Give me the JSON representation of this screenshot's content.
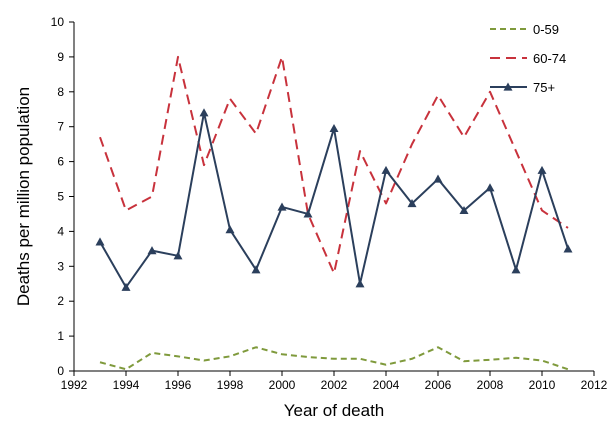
{
  "chart_data": {
    "type": "line",
    "xlabel": "Year of death",
    "ylabel": "Deaths per million population",
    "xlim": [
      1992,
      2012
    ],
    "ylim": [
      0,
      10
    ],
    "xticks": [
      "1992",
      "1994",
      "1996",
      "1998",
      "2000",
      "2002",
      "2004",
      "2006",
      "2008",
      "2010",
      "2012"
    ],
    "yticks": [
      "0",
      "1",
      "2",
      "3",
      "4",
      "5",
      "6",
      "7",
      "8",
      "9",
      "10"
    ],
    "grid": false,
    "legend_position": "top-right",
    "x": [
      1993,
      1994,
      1995,
      1996,
      1997,
      1998,
      1999,
      2000,
      2001,
      2002,
      2003,
      2004,
      2005,
      2006,
      2007,
      2008,
      2009,
      2010,
      2011
    ],
    "series": [
      {
        "name": "0-59",
        "color": "#7f9a3c",
        "style": "dashed",
        "marker": "none",
        "values": [
          0.25,
          0.05,
          0.52,
          0.42,
          0.3,
          0.42,
          0.68,
          0.48,
          0.4,
          0.35,
          0.35,
          0.18,
          0.35,
          0.68,
          0.28,
          0.32,
          0.38,
          0.3,
          0.05
        ]
      },
      {
        "name": "60-74",
        "color": "#c8323c",
        "style": "dashed",
        "marker": "none",
        "values": [
          6.7,
          4.6,
          5.0,
          9.0,
          5.9,
          7.8,
          6.8,
          9.0,
          4.5,
          2.8,
          6.3,
          4.8,
          6.5,
          7.9,
          6.7,
          8.0,
          6.3,
          4.6,
          4.1
        ]
      },
      {
        "name": "75+",
        "color": "#2b3f5c",
        "style": "solid",
        "marker": "triangle",
        "values": [
          3.7,
          2.4,
          3.45,
          3.3,
          7.4,
          4.05,
          2.9,
          4.7,
          4.5,
          6.95,
          2.5,
          5.75,
          4.8,
          5.5,
          4.6,
          5.25,
          2.9,
          5.75,
          3.5
        ]
      }
    ]
  }
}
